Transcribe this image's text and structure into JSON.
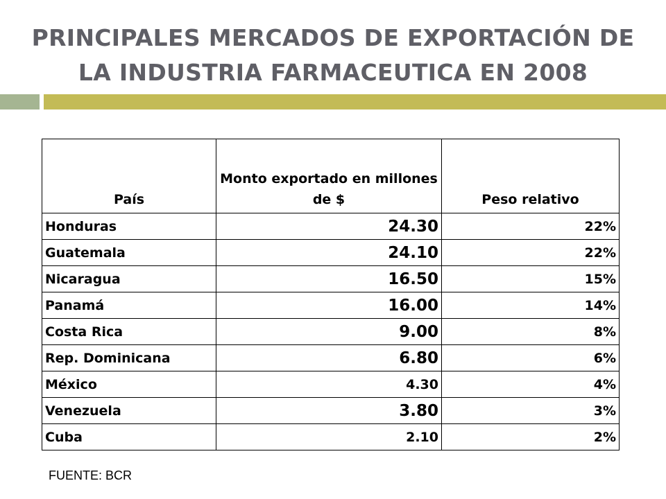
{
  "title": {
    "line1": "PRINCIPALES MERCADOS DE EXPORTACIÓN DE",
    "line2": "LA INDUSTRIA FARMACEUTICA EN 2008"
  },
  "colors": {
    "title": "#5f5f66",
    "bar_left": "#a5b592",
    "bar_right": "#c3bb56"
  },
  "table": {
    "headers": {
      "country": "País",
      "amount": "Monto exportado en millones de $",
      "weight": "Peso relativo"
    },
    "rows": [
      {
        "country": "Honduras",
        "amount": "24.30",
        "weight": "22%"
      },
      {
        "country": "Guatemala",
        "amount": "24.10",
        "weight": "22%"
      },
      {
        "country": "Nicaragua",
        "amount": "16.50",
        "weight": "15%"
      },
      {
        "country": "Panamá",
        "amount": "16.00",
        "weight": "14%"
      },
      {
        "country": "Costa Rica",
        "amount": "9.00",
        "weight": "8%"
      },
      {
        "country": "Rep. Dominicana",
        "amount": "6.80",
        "weight": "6%"
      },
      {
        "country": "México",
        "amount": "4.30",
        "weight": "4%"
      },
      {
        "country": "Venezuela",
        "amount": "3.80",
        "weight": "3%"
      },
      {
        "country": "Cuba",
        "amount": "2.10",
        "weight": "2%"
      }
    ]
  },
  "source": "FUENTE: BCR"
}
